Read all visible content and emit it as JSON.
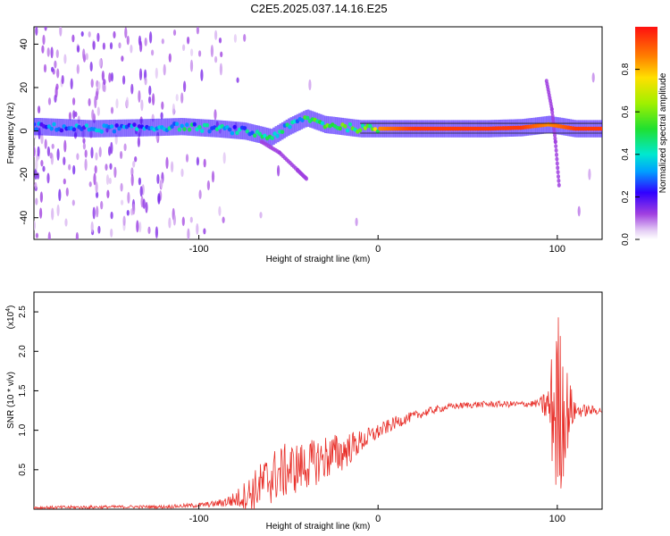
{
  "title": "C2E5.2025.037.14.16.E25",
  "chart_data": [
    {
      "type": "heatmap",
      "xlabel": "Height of straight line (km)",
      "ylabel": "Frequency (Hz)",
      "xlim": [
        -192,
        125
      ],
      "ylim": [
        -50,
        48
      ],
      "xticks": [
        -100,
        0,
        100
      ],
      "yticks": [
        -40,
        -20,
        0,
        20,
        40
      ],
      "colorbar": {
        "label": "Normalized spectral amplitude",
        "ticks": [
          0.0,
          0.2,
          0.4,
          0.6,
          0.8
        ],
        "range": [
          0,
          1
        ]
      },
      "ridge": [
        {
          "x": -190,
          "y": 2,
          "a": 0.3
        },
        {
          "x": -160,
          "y": 1,
          "a": 0.35
        },
        {
          "x": -130,
          "y": 1.5,
          "a": 0.35
        },
        {
          "x": -110,
          "y": 2,
          "a": 0.45
        },
        {
          "x": -90,
          "y": 1,
          "a": 0.4
        },
        {
          "x": -75,
          "y": 0,
          "a": 0.4
        },
        {
          "x": -60,
          "y": -3,
          "a": 0.45
        },
        {
          "x": -50,
          "y": 2,
          "a": 0.45
        },
        {
          "x": -40,
          "y": 6,
          "a": 0.5
        },
        {
          "x": -30,
          "y": 3,
          "a": 0.55
        },
        {
          "x": -20,
          "y": 2,
          "a": 0.6
        },
        {
          "x": -10,
          "y": 1,
          "a": 0.75
        },
        {
          "x": 0,
          "y": 1,
          "a": 0.85
        },
        {
          "x": 20,
          "y": 1,
          "a": 0.95
        },
        {
          "x": 40,
          "y": 1,
          "a": 0.95
        },
        {
          "x": 60,
          "y": 1,
          "a": 0.95
        },
        {
          "x": 80,
          "y": 1.5,
          "a": 0.95
        },
        {
          "x": 95,
          "y": 3,
          "a": 0.85
        },
        {
          "x": 110,
          "y": 1,
          "a": 0.95
        },
        {
          "x": 125,
          "y": 1,
          "a": 0.95
        }
      ],
      "branches": [
        {
          "points": [
            [
              -65,
              -5
            ],
            [
              -55,
              -10
            ],
            [
              -45,
              -18
            ],
            [
              -40,
              -22
            ]
          ]
        },
        {
          "points": [
            [
              94,
              23
            ],
            [
              97,
              10
            ],
            [
              99,
              -5
            ],
            [
              101,
              -25
            ]
          ]
        }
      ]
    },
    {
      "type": "line",
      "xlabel": "Height of straight line (km)",
      "ylabel": "SNR (10 * v/v)",
      "y_multiplier": "(x10",
      "y_exponent": "4",
      "xlim": [
        -192,
        125
      ],
      "ylim": [
        0,
        2.75
      ],
      "xticks": [
        -100,
        0,
        100
      ],
      "yticks": [
        0.5,
        1.0,
        1.5,
        2.0,
        2.5
      ],
      "series": [
        {
          "color": "#e8302a",
          "envelope_x": [
            -192,
            -140,
            -120,
            -100,
            -90,
            -80,
            -70,
            -60,
            -50,
            -40,
            -30,
            -20,
            -10,
            0,
            10,
            20,
            30,
            40,
            50,
            60,
            70,
            80,
            90,
            95,
            100,
            105,
            110,
            125
          ],
          "envelope_y": [
            0.02,
            0.03,
            0.03,
            0.05,
            0.07,
            0.12,
            0.22,
            0.4,
            0.5,
            0.55,
            0.65,
            0.72,
            0.85,
            0.98,
            1.1,
            1.18,
            1.25,
            1.3,
            1.32,
            1.33,
            1.33,
            1.33,
            1.34,
            1.3,
            1.25,
            1.25,
            1.25,
            1.25
          ],
          "noise_amplitude": [
            0.02,
            0.02,
            0.02,
            0.03,
            0.04,
            0.1,
            0.25,
            0.35,
            0.35,
            0.3,
            0.3,
            0.25,
            0.15,
            0.1,
            0.08,
            0.06,
            0.05,
            0.04,
            0.04,
            0.04,
            0.04,
            0.04,
            0.05,
            0.3,
            1.4,
            0.6,
            0.1,
            0.04
          ]
        }
      ]
    }
  ]
}
